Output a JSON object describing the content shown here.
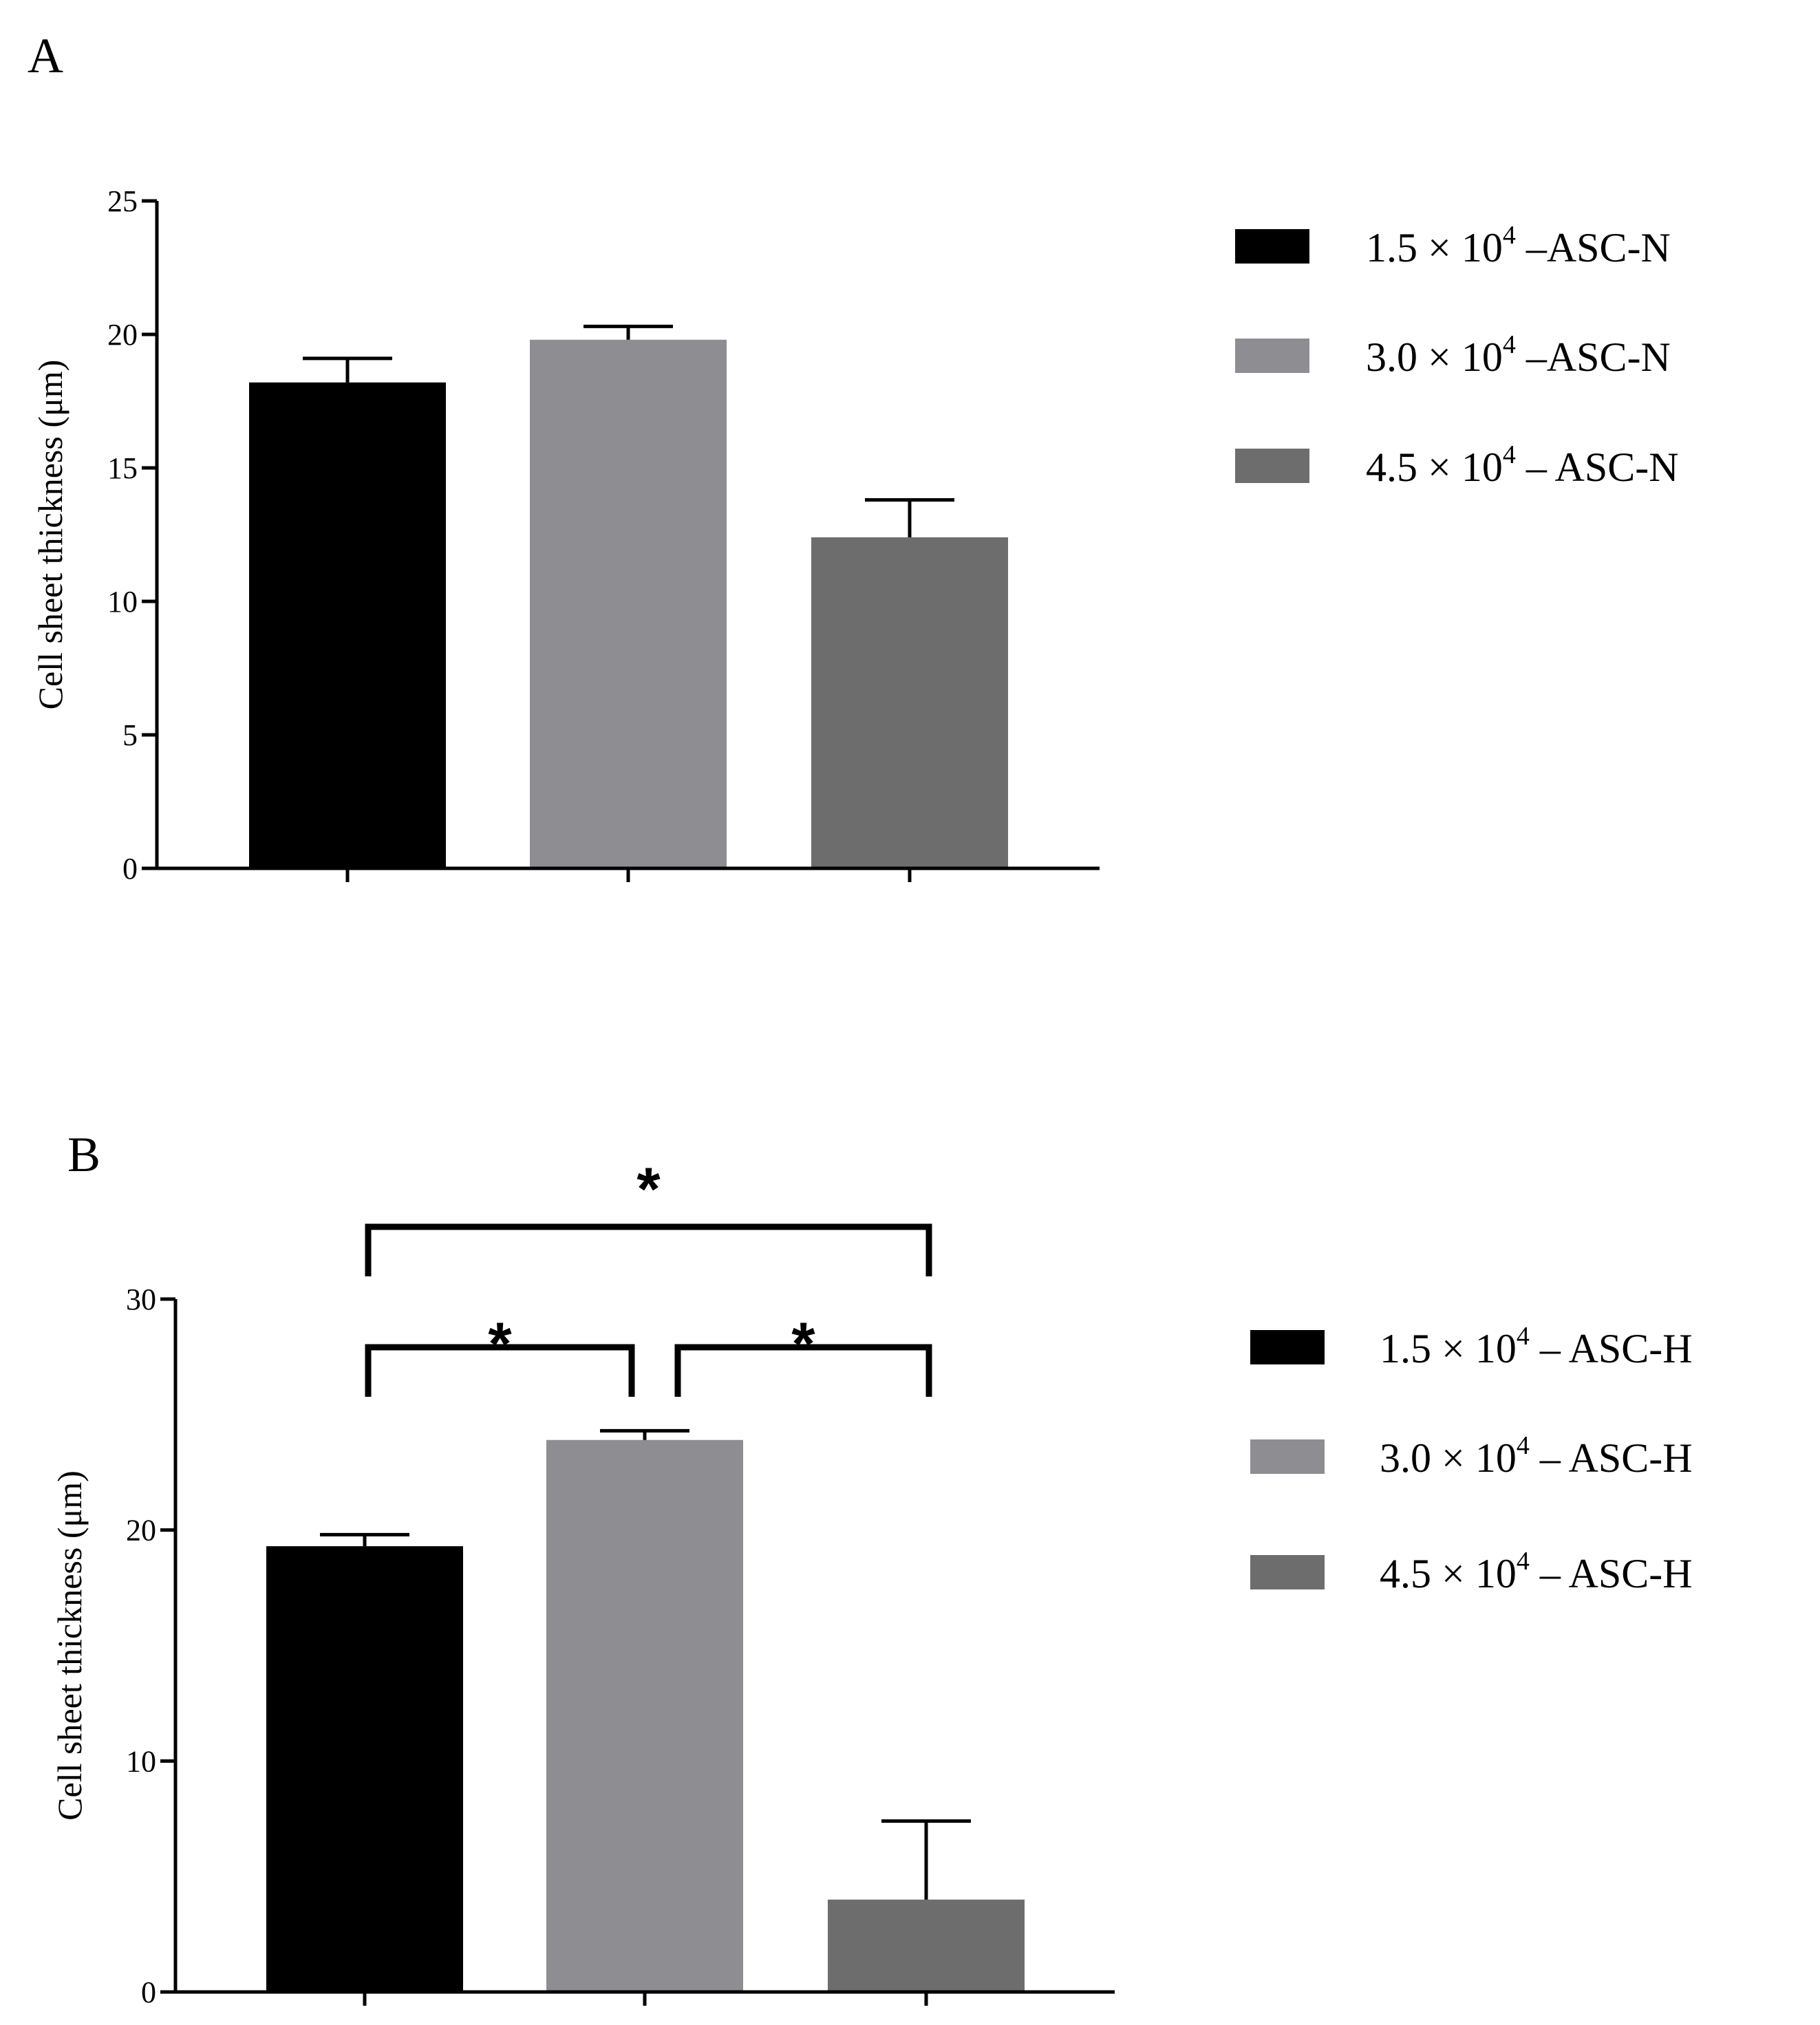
{
  "chart_data": [
    {
      "type": "bar",
      "panel_label": "A",
      "title": "",
      "xlabel": "",
      "ylabel": "Cell sheet thickness (μm)",
      "ylim": [
        0,
        25
      ],
      "yticks": [
        "0",
        "5",
        "10",
        "15",
        "20",
        "25"
      ],
      "grid": false,
      "legend_position": "right",
      "series": [
        {
          "name": "1.5 × 10⁴ –ASC-N",
          "legend_base": "1.5 × 10",
          "legend_exp": "4",
          "legend_tail": " –ASC-N",
          "value": 18.2,
          "error": 0.9,
          "color": "#000000"
        },
        {
          "name": "3.0 × 10⁴ –ASC-N",
          "legend_base": "3.0 × 10",
          "legend_exp": "4",
          "legend_tail": " –ASC-N",
          "value": 19.8,
          "error": 0.5,
          "color": "#8e8d92"
        },
        {
          "name": "4.5 × 10⁴ – ASC-N",
          "legend_base": "4.5 × 10",
          "legend_exp": "4",
          "legend_tail": " – ASC-N",
          "value": 12.4,
          "error": 1.4,
          "color": "#6d6d6d"
        }
      ],
      "significance": []
    },
    {
      "type": "bar",
      "panel_label": "B",
      "title": "",
      "xlabel": "",
      "ylabel": "Cell sheet thickness (μm)",
      "ylim": [
        0,
        30
      ],
      "yticks": [
        "0",
        "10",
        "20",
        "30"
      ],
      "grid": false,
      "legend_position": "right",
      "series": [
        {
          "name": "1.5 × 10⁴ – ASC-H",
          "legend_base": "1.5 × 10",
          "legend_exp": "4",
          "legend_tail": " – ASC-H",
          "value": 19.3,
          "error": 0.5,
          "color": "#000000"
        },
        {
          "name": "3.0 × 10⁴ – ASC-H",
          "legend_base": "3.0 × 10",
          "legend_exp": "4",
          "legend_tail": " – ASC-H",
          "value": 23.9,
          "error": 0.4,
          "color": "#8e8d92"
        },
        {
          "name": "4.5 × 10⁴ – ASC-H",
          "legend_base": "4.5 × 10",
          "legend_exp": "4",
          "legend_tail": " – ASC-H",
          "value": 4.0,
          "error": 3.4,
          "color": "#6d6d6d"
        }
      ],
      "significance": [
        {
          "from": 0,
          "to": 1,
          "label": "*"
        },
        {
          "from": 1,
          "to": 2,
          "label": "*"
        },
        {
          "from": 0,
          "to": 2,
          "label": "*"
        }
      ]
    }
  ]
}
